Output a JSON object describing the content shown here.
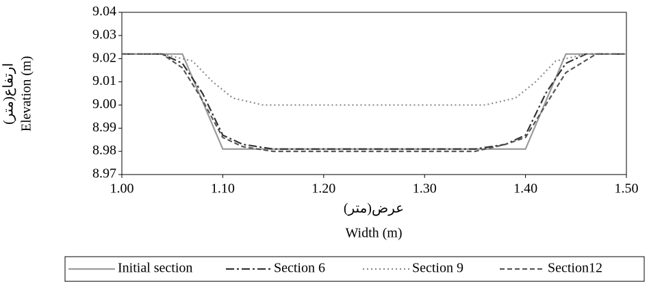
{
  "chart_data": {
    "type": "line",
    "y_label": "Elevation (m)",
    "y_label_alt": "ارتفاع(متر)",
    "x_label": "Width (m)",
    "x_label_alt": "عرض(متر)",
    "xlim": [
      1.0,
      1.5
    ],
    "xticks": [
      {
        "value": 1.0,
        "label": "1.00"
      },
      {
        "value": 1.1,
        "label": "1.10"
      },
      {
        "value": 1.2,
        "label": "1.20"
      },
      {
        "value": 1.3,
        "label": "1.30"
      },
      {
        "value": 1.4,
        "label": "1.40"
      },
      {
        "value": 1.5,
        "label": "1.50"
      }
    ],
    "ylim": [
      8.97,
      9.04
    ],
    "yticks": [
      8.97,
      8.98,
      8.99,
      {
        "value": 9.0,
        "label": "9.00"
      },
      9.01,
      9.02,
      9.03,
      9.04
    ],
    "legend": "bottom",
    "series": [
      {
        "name": "Initial section",
        "color": "#9a9a9a",
        "dash": "solid",
        "x": [
          1.0,
          1.06,
          1.1,
          1.4,
          1.44,
          1.5
        ],
        "values": [
          9.022,
          9.022,
          8.981,
          8.981,
          9.022,
          9.022
        ]
      },
      {
        "name": "Section 6",
        "color": "#333333",
        "dash": "dashdot",
        "x": [
          1.0,
          1.04,
          1.06,
          1.08,
          1.1,
          1.12,
          1.15,
          1.2,
          1.3,
          1.35,
          1.38,
          1.4,
          1.42,
          1.44,
          1.46,
          1.5
        ],
        "values": [
          9.022,
          9.022,
          9.018,
          9.005,
          8.987,
          8.983,
          8.981,
          8.981,
          8.981,
          8.981,
          8.983,
          8.987,
          9.005,
          9.018,
          9.022,
          9.022
        ]
      },
      {
        "name": "Section 9",
        "color": "#888888",
        "dash": "dotted",
        "x": [
          1.0,
          1.04,
          1.07,
          1.09,
          1.11,
          1.14,
          1.2,
          1.3,
          1.36,
          1.39,
          1.41,
          1.43,
          1.46,
          1.5
        ],
        "values": [
          9.022,
          9.022,
          9.019,
          9.01,
          9.003,
          9.0,
          9.0,
          9.0,
          9.0,
          9.003,
          9.01,
          9.019,
          9.022,
          9.022
        ]
      },
      {
        "name": "Section12",
        "color": "#555555",
        "dash": "dashed",
        "x": [
          1.0,
          1.04,
          1.06,
          1.08,
          1.1,
          1.12,
          1.15,
          1.2,
          1.3,
          1.35,
          1.38,
          1.4,
          1.42,
          1.44,
          1.47,
          1.5
        ],
        "values": [
          9.022,
          9.022,
          9.016,
          9.002,
          8.986,
          8.982,
          8.98,
          8.98,
          8.98,
          8.98,
          8.983,
          8.986,
          9.0,
          9.014,
          9.022,
          9.022
        ]
      }
    ]
  }
}
